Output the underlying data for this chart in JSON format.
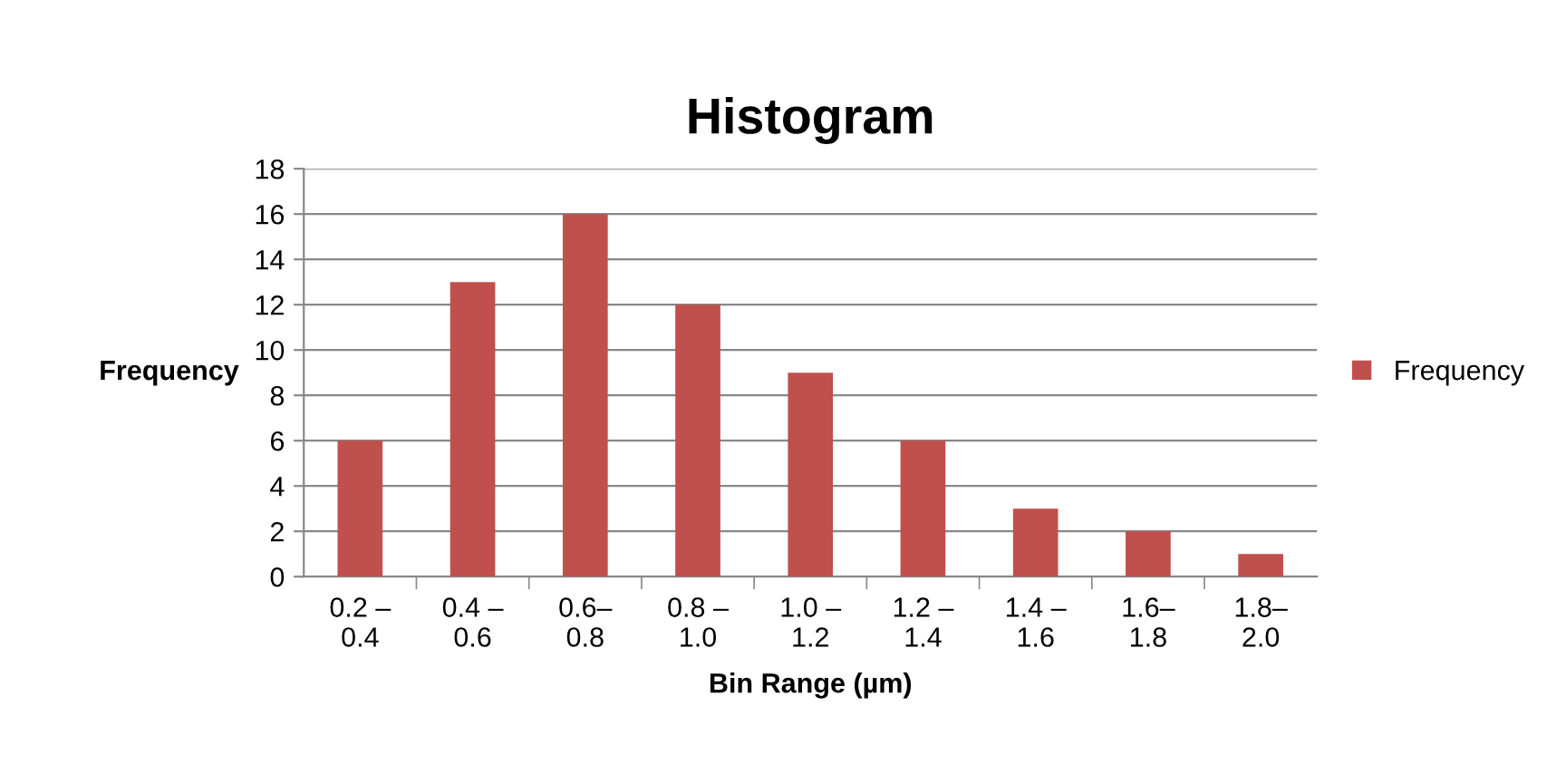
{
  "chart_data": {
    "type": "bar",
    "title": "Histogram",
    "xlabel": "Bin Range (µm)",
    "ylabel": "Frequency",
    "categories": [
      "0.2 –\n0.4",
      "0.4 –\n0.6",
      "0.6–\n0.8",
      "0.8 –\n1.0",
      "1.0 –\n1.2",
      "1.2 –\n1.4",
      "1.4 –\n1.6",
      "1.6–\n1.8",
      "1.8–\n2.0"
    ],
    "series": [
      {
        "name": "Frequency",
        "color": "#c0504d",
        "values": [
          6,
          13,
          16,
          12,
          9,
          6,
          3,
          2,
          1
        ]
      }
    ],
    "ylim": [
      0,
      18
    ],
    "yticks": [
      0,
      2,
      4,
      6,
      8,
      10,
      12,
      14,
      16,
      18
    ],
    "grid": "y",
    "legend": "right"
  }
}
